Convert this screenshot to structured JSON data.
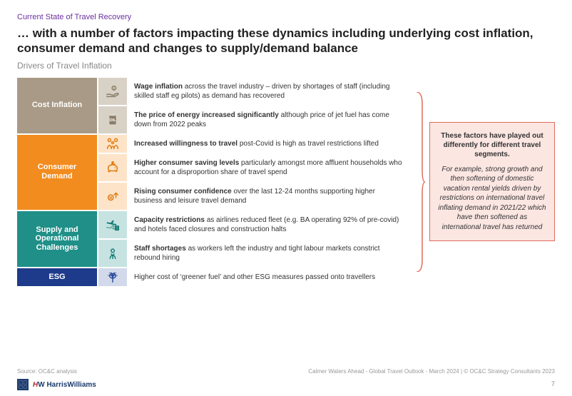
{
  "eyebrow": "Current State of Travel Recovery",
  "title": "… with a number of factors impacting these dynamics including underlying cost inflation, consumer demand and changes to supply/demand balance",
  "subtitle": "Drivers of Travel Inflation",
  "groups": [
    {
      "label": "Cost Inflation",
      "label_bg": "#a89a86",
      "icon_bg": "#d8d1c6",
      "icon_stroke": "#8a7c66",
      "items": [
        {
          "icon": "hand-coin",
          "bold": "Wage inflation",
          "rest": " across the travel industry – driven by shortages of staff (including skilled staff eg pilots) as demand has recovered"
        },
        {
          "icon": "oil-barrel",
          "bold": "The price of energy increased significantly",
          "rest": " although price of jet fuel has come down from 2022 peaks"
        }
      ]
    },
    {
      "label": "Consumer Demand",
      "label_bg": "#f28c1e",
      "icon_bg": "#fde4c9",
      "icon_stroke": "#e07b10",
      "items": [
        {
          "icon": "family",
          "bold": "Increased willingness to travel",
          "rest": " post-Covid is high as travel restrictions lifted"
        },
        {
          "icon": "piggy-bank",
          "bold": "Higher consumer saving levels",
          "rest": " particularly amongst more affluent households who account for a disproportion share of travel spend"
        },
        {
          "icon": "confidence-up",
          "bold": "Rising consumer confidence",
          "rest": " over the last 12-24 months supporting higher business and leisure travel demand"
        }
      ]
    },
    {
      "label": "Supply and Operational Challenges",
      "label_bg": "#1f8f88",
      "icon_bg": "#c6e3e1",
      "icon_stroke": "#157a73",
      "items": [
        {
          "icon": "plane-hotel",
          "bold": "Capacity restrictions",
          "rest": " as airlines reduced fleet (e.g. BA operating 92% of pre-covid) and hotels faced closures and construction halts"
        },
        {
          "icon": "worker",
          "bold": "Staff shortages",
          "rest": " as workers left the industry and tight labour markets constrict rebound hiring"
        }
      ]
    },
    {
      "label": "ESG",
      "label_bg": "#1e3a8a",
      "icon_bg": "#d2d9ea",
      "icon_stroke": "#2a4a9a",
      "items": [
        {
          "icon": "leaf-tree",
          "bold": "",
          "rest": "Higher cost of ‘greener fuel’ and other ESG measures passed onto travellers"
        }
      ]
    }
  ],
  "callout": {
    "border_color": "#e06a5a",
    "bg_color": "#fbe6e2",
    "bracket_color": "#e06a5a",
    "lead": "These factors have played out differently for different travel segments.",
    "body": "For example, strong growth and then softening of domestic vacation rental yields driven by restrictions on international travel inflating demand in 2021/22 which have then softened as international travel has returned"
  },
  "source": "Source: OC&C analysis",
  "footer_right": "Calmer Waters Ahead - Global Travel Outlook - March 2024  |  © OC&C Strategy Consultants 2023",
  "pagenum": "7",
  "logo": {
    "hw1": "H",
    "hw2": "W HarrisWilliams"
  },
  "colors": {
    "eyebrow": "#6b2fa0",
    "title": "#222222",
    "subtitle": "#888888",
    "text": "#333333",
    "source": "#999999"
  }
}
